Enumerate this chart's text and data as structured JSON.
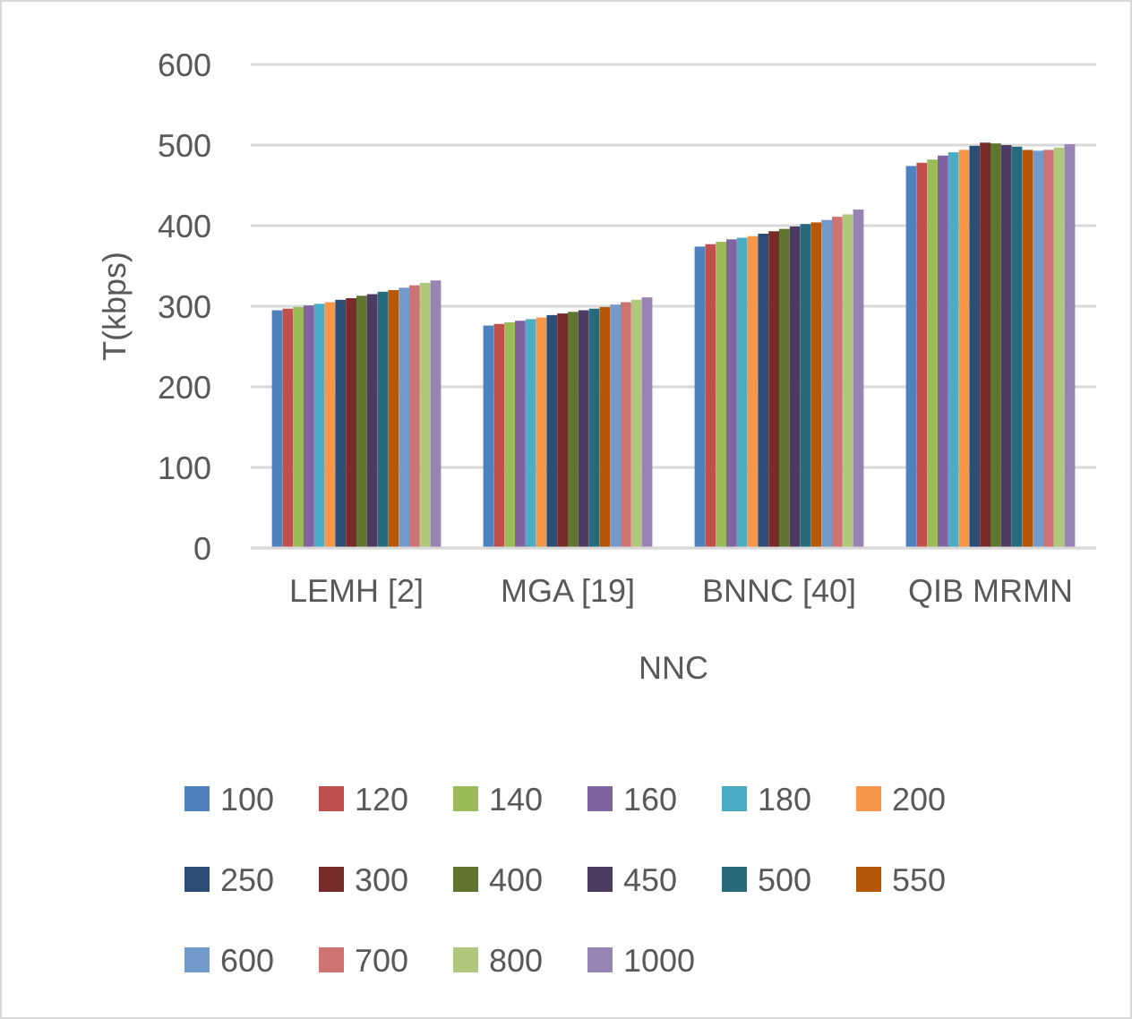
{
  "chart_data": {
    "type": "bar",
    "xlabel": "NNC",
    "ylabel": "T(kbps)",
    "categories": [
      "LEMH [2]",
      "MGA [19]",
      "BNNC [40]",
      "QIB MRMN"
    ],
    "ylim": [
      0,
      600
    ],
    "yticks": [
      0,
      100,
      200,
      300,
      400,
      500,
      600
    ],
    "grid": "y",
    "legend": "bottom",
    "series": [
      {
        "name": "100",
        "color": "#4f81bd",
        "values": [
          295,
          276,
          374,
          474
        ]
      },
      {
        "name": "120",
        "color": "#c0504d",
        "values": [
          297,
          278,
          377,
          478
        ]
      },
      {
        "name": "140",
        "color": "#9bbb59",
        "values": [
          299,
          280,
          380,
          482
        ]
      },
      {
        "name": "160",
        "color": "#8064a2",
        "values": [
          301,
          282,
          383,
          487
        ]
      },
      {
        "name": "180",
        "color": "#4bacc6",
        "values": [
          303,
          284,
          385,
          491
        ]
      },
      {
        "name": "200",
        "color": "#f79646",
        "values": [
          305,
          286,
          387,
          494
        ]
      },
      {
        "name": "250",
        "color": "#2c4d75",
        "values": [
          308,
          289,
          390,
          499
        ]
      },
      {
        "name": "300",
        "color": "#772c2a",
        "values": [
          310,
          291,
          393,
          503
        ]
      },
      {
        "name": "400",
        "color": "#5f7530",
        "values": [
          313,
          293,
          396,
          502
        ]
      },
      {
        "name": "450",
        "color": "#4d3b62",
        "values": [
          315,
          295,
          399,
          500
        ]
      },
      {
        "name": "500",
        "color": "#276a7c",
        "values": [
          318,
          297,
          402,
          498
        ]
      },
      {
        "name": "550",
        "color": "#b65708",
        "values": [
          320,
          299,
          404,
          494
        ]
      },
      {
        "name": "600",
        "color": "#729aca",
        "values": [
          323,
          302,
          407,
          493
        ]
      },
      {
        "name": "700",
        "color": "#cd7371",
        "values": [
          326,
          305,
          411,
          494
        ]
      },
      {
        "name": "800",
        "color": "#afc97a",
        "values": [
          329,
          308,
          414,
          497
        ]
      },
      {
        "name": "1000",
        "color": "#9983b5",
        "values": [
          332,
          311,
          420,
          501
        ]
      }
    ]
  }
}
